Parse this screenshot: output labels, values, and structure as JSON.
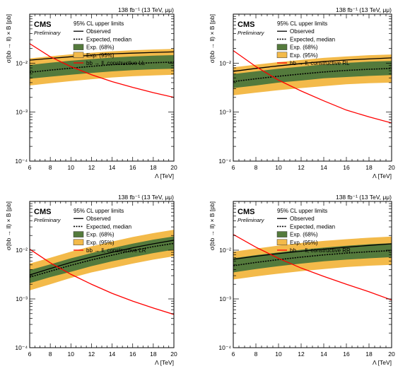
{
  "figure": {
    "legend_title": "95% CL upper limits",
    "cms_label": "CMS",
    "preliminary_label": "Preliminary",
    "lumi_label": "138 fb⁻¹ (13 TeV, μμ)",
    "colors": {
      "band95": "#f3ba4a",
      "band68": "#547a3c",
      "signal": "#ff0000",
      "observed": "#000000",
      "expected": "#000000"
    }
  },
  "chart_data": [
    {
      "type": "line",
      "panel": "top-left",
      "xlabel": "Λ [TeV]",
      "ylabel": "σ(bb → ll) × B [pb]",
      "xlim": [
        6,
        20
      ],
      "ylim": [
        0.0001,
        0.1
      ],
      "yscale": "log",
      "x_ticks": [
        6,
        8,
        10,
        12,
        14,
        16,
        18,
        20
      ],
      "y_ticks": [
        0.0001,
        0.001,
        0.01
      ],
      "y_tick_labels": [
        "10⁻⁴",
        "10⁻³",
        "10⁻²"
      ],
      "legend_position": "top-right",
      "x": [
        6,
        8,
        10,
        12,
        14,
        16,
        18,
        20
      ],
      "observed": [
        0.0115,
        0.0125,
        0.0135,
        0.0145,
        0.0155,
        0.016,
        0.0165,
        0.017
      ],
      "expected": [
        0.0065,
        0.0072,
        0.0079,
        0.0086,
        0.0093,
        0.0098,
        0.0102,
        0.0105
      ],
      "exp68": {
        "lo": [
          0.0048,
          0.0053,
          0.0058,
          0.0063,
          0.0068,
          0.0072,
          0.0075,
          0.0077
        ],
        "hi": [
          0.0092,
          0.0102,
          0.0112,
          0.0121,
          0.013,
          0.0137,
          0.0142,
          0.0146
        ]
      },
      "exp95": {
        "lo": [
          0.0035,
          0.0039,
          0.0043,
          0.0047,
          0.0051,
          0.0054,
          0.0056,
          0.0058
        ],
        "hi": [
          0.0125,
          0.0138,
          0.0151,
          0.0163,
          0.0174,
          0.0183,
          0.019,
          0.0195
        ]
      },
      "signal": [
        0.025,
        0.0135,
        0.0085,
        0.0058,
        0.0042,
        0.0032,
        0.0025,
        0.002
      ],
      "series": [
        {
          "name": "Observed"
        },
        {
          "name": "Expected, median"
        },
        {
          "name": "Exp. (68%)"
        },
        {
          "name": "Exp. (95%)"
        },
        {
          "name": "bb → ll, constructive LL"
        }
      ]
    },
    {
      "type": "line",
      "panel": "top-right",
      "xlabel": "Λ [TeV]",
      "ylabel": "σ(bb → ll) × B [pb]",
      "xlim": [
        6,
        20
      ],
      "ylim": [
        0.0001,
        0.1
      ],
      "yscale": "log",
      "x_ticks": [
        6,
        8,
        10,
        12,
        14,
        16,
        18,
        20
      ],
      "y_ticks": [
        0.0001,
        0.001,
        0.01
      ],
      "y_tick_labels": [
        "10⁻⁴",
        "10⁻³",
        "10⁻²"
      ],
      "legend_position": "top-right",
      "x": [
        6,
        8,
        10,
        12,
        14,
        16,
        18,
        20
      ],
      "observed": [
        0.0068,
        0.0078,
        0.0088,
        0.0098,
        0.0108,
        0.0116,
        0.0122,
        0.0128
      ],
      "expected": [
        0.0042,
        0.0048,
        0.0054,
        0.006,
        0.0066,
        0.0071,
        0.0075,
        0.0078
      ],
      "exp68": {
        "lo": [
          0.0031,
          0.0035,
          0.004,
          0.0044,
          0.0049,
          0.0052,
          0.0055,
          0.0057
        ],
        "hi": [
          0.006,
          0.0068,
          0.0077,
          0.0085,
          0.0094,
          0.0101,
          0.0107,
          0.0111
        ]
      },
      "exp95": {
        "lo": [
          0.0022,
          0.0025,
          0.0028,
          0.0031,
          0.0034,
          0.0037,
          0.0039,
          0.004
        ],
        "hi": [
          0.0082,
          0.0093,
          0.0105,
          0.0116,
          0.0128,
          0.0137,
          0.0145,
          0.015
        ]
      },
      "signal": [
        0.018,
        0.0085,
        0.0045,
        0.0027,
        0.0017,
        0.0011,
        0.0008,
        0.0006
      ],
      "series": [
        {
          "name": "Observed"
        },
        {
          "name": "Expected, median"
        },
        {
          "name": "Exp. (68%)"
        },
        {
          "name": "Exp. (95%)"
        },
        {
          "name": "bb → ll, constructive RL"
        }
      ]
    },
    {
      "type": "line",
      "panel": "bottom-left",
      "xlabel": "Λ [TeV]",
      "ylabel": "σ(bb → ll) × B [pb]",
      "xlim": [
        6,
        20
      ],
      "ylim": [
        0.0001,
        0.1
      ],
      "yscale": "log",
      "x_ticks": [
        6,
        8,
        10,
        12,
        14,
        16,
        18,
        20
      ],
      "y_ticks": [
        0.0001,
        0.001,
        0.01
      ],
      "y_tick_labels": [
        "10⁻⁴",
        "10⁻³",
        "10⁻²"
      ],
      "legend_position": "top-right",
      "x": [
        6,
        8,
        10,
        12,
        14,
        16,
        18,
        20
      ],
      "observed": [
        0.0031,
        0.0042,
        0.0056,
        0.0072,
        0.009,
        0.0112,
        0.0135,
        0.016
      ],
      "expected": [
        0.0028,
        0.0037,
        0.0049,
        0.0063,
        0.0079,
        0.0098,
        0.0118,
        0.0138
      ],
      "exp68": {
        "lo": [
          0.0021,
          0.0028,
          0.0036,
          0.0047,
          0.0059,
          0.0072,
          0.0087,
          0.0102
        ],
        "hi": [
          0.0039,
          0.0051,
          0.0068,
          0.0087,
          0.011,
          0.0136,
          0.0164,
          0.0192
        ]
      },
      "exp95": {
        "lo": [
          0.0015,
          0.002,
          0.0027,
          0.0035,
          0.0043,
          0.0053,
          0.0064,
          0.0075
        ],
        "hi": [
          0.0053,
          0.007,
          0.0093,
          0.012,
          0.015,
          0.0186,
          0.0224,
          0.0262
        ]
      },
      "signal": [
        0.0105,
        0.0055,
        0.0032,
        0.002,
        0.0013,
        0.0009,
        0.00065,
        0.00048
      ],
      "series": [
        {
          "name": "Observed"
        },
        {
          "name": "Expected, median"
        },
        {
          "name": "Exp. (68%)"
        },
        {
          "name": "Exp. (95%)"
        },
        {
          "name": "bb → ll, constructive LR"
        }
      ]
    },
    {
      "type": "line",
      "panel": "bottom-right",
      "xlabel": "Λ [TeV]",
      "ylabel": "σ(bb → ll) × B [pb]",
      "xlim": [
        6,
        20
      ],
      "ylim": [
        0.0001,
        0.1
      ],
      "yscale": "log",
      "x_ticks": [
        6,
        8,
        10,
        12,
        14,
        16,
        18,
        20
      ],
      "y_ticks": [
        0.0001,
        0.001,
        0.01
      ],
      "y_tick_labels": [
        "10⁻⁴",
        "10⁻³",
        "10⁻²"
      ],
      "legend_position": "top-right",
      "x": [
        6,
        8,
        10,
        12,
        14,
        16,
        18,
        20
      ],
      "observed": [
        0.0065,
        0.0075,
        0.0085,
        0.0095,
        0.0105,
        0.0115,
        0.0125,
        0.0135
      ],
      "expected": [
        0.0048,
        0.0056,
        0.0064,
        0.0072,
        0.008,
        0.0087,
        0.0093,
        0.0098
      ],
      "exp68": {
        "lo": [
          0.0035,
          0.0041,
          0.0047,
          0.0053,
          0.0059,
          0.0064,
          0.0068,
          0.0072
        ],
        "hi": [
          0.0068,
          0.0079,
          0.009,
          0.0102,
          0.0113,
          0.0123,
          0.0132,
          0.0139
        ]
      },
      "exp95": {
        "lo": [
          0.0025,
          0.0029,
          0.0033,
          0.0037,
          0.0041,
          0.0045,
          0.0048,
          0.005
        ],
        "hi": [
          0.0093,
          0.0108,
          0.0124,
          0.014,
          0.0155,
          0.0168,
          0.018,
          0.019
        ]
      },
      "signal": [
        0.021,
        0.0115,
        0.0068,
        0.0043,
        0.0029,
        0.002,
        0.0014,
        0.00095
      ],
      "series": [
        {
          "name": "Observed"
        },
        {
          "name": "Expected, median"
        },
        {
          "name": "Exp. (68%)"
        },
        {
          "name": "Exp. (95%)"
        },
        {
          "name": "bb → ll, constructive RR"
        }
      ]
    }
  ]
}
